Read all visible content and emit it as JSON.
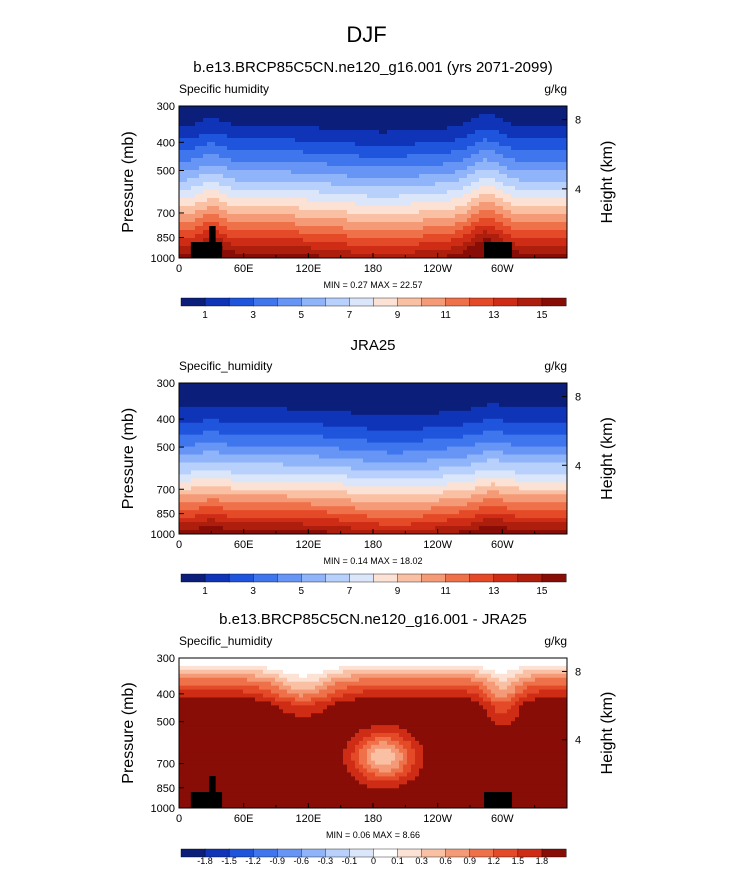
{
  "figure_title": "DJF",
  "chart_data": [
    {
      "type": "heatmap",
      "title": "b.e13.BRCP85C5CN.ne120_g16.001 (yrs 2071-2099)",
      "variable_label": "Specific humidity",
      "units": "g/kg",
      "ylabel": "Pressure (mb)",
      "ylabel_right": "Height (km)",
      "x_ticks": [
        "0",
        "60E",
        "120E",
        "180",
        "120W",
        "60W"
      ],
      "y_ticks": [
        "300",
        "400",
        "500",
        "700",
        "850",
        "1000"
      ],
      "y_right_ticks": [
        "8",
        "4"
      ],
      "stats": "MIN =   0.27   MAX =  22.57",
      "colorbar_labels": [
        "1",
        "3",
        "5",
        "7",
        "9",
        "11",
        "13",
        "15"
      ],
      "colors": [
        "#0a1e7a",
        "#0f34b8",
        "#1f55dc",
        "#3f76ee",
        "#6695f5",
        "#8fb4fa",
        "#b7d0fc",
        "#dbe6fb",
        "#fbe2d4",
        "#f9c0a4",
        "#f59a76",
        "#ee714a",
        "#e44a27",
        "#cf2c16",
        "#ad1e0d",
        "#890d07"
      ]
    },
    {
      "type": "heatmap",
      "title": "JRA25",
      "variable_label": "Specific_humidity",
      "units": "g/kg",
      "ylabel": "Pressure (mb)",
      "ylabel_right": "Height (km)",
      "x_ticks": [
        "0",
        "60E",
        "120E",
        "180",
        "120W",
        "60W"
      ],
      "y_ticks": [
        "300",
        "400",
        "500",
        "700",
        "850",
        "1000"
      ],
      "y_right_ticks": [
        "8",
        "4"
      ],
      "stats": "MIN =   0.14   MAX =  18.02",
      "colorbar_labels": [
        "1",
        "3",
        "5",
        "7",
        "9",
        "11",
        "13",
        "15"
      ],
      "colors": [
        "#0a1e7a",
        "#0f34b8",
        "#1f55dc",
        "#3f76ee",
        "#6695f5",
        "#8fb4fa",
        "#b7d0fc",
        "#dbe6fb",
        "#fbe2d4",
        "#f9c0a4",
        "#f59a76",
        "#ee714a",
        "#e44a27",
        "#cf2c16",
        "#ad1e0d",
        "#890d07"
      ]
    },
    {
      "type": "heatmap",
      "title": "b.e13.BRCP85C5CN.ne120_g16.001 - JRA25",
      "variable_label": "Specific_humidity",
      "units": "g/kg",
      "ylabel": "Pressure (mb)",
      "ylabel_right": "Height (km)",
      "x_ticks": [
        "0",
        "60E",
        "120E",
        "180",
        "120W",
        "60W"
      ],
      "y_ticks": [
        "300",
        "400",
        "500",
        "700",
        "850",
        "1000"
      ],
      "y_right_ticks": [
        "8",
        "4"
      ],
      "stats": "MIN =   0.06   MAX =   8.66",
      "colorbar_labels": [
        "-1.8",
        "-1.5",
        "-1.2",
        "-0.9",
        "-0.6",
        "-0.3",
        "-0.1",
        "0",
        "0.1",
        "0.3",
        "0.6",
        "0.9",
        "1.2",
        "1.5",
        "1.8"
      ],
      "colors": [
        "#0a1e7a",
        "#0f34b8",
        "#1f55dc",
        "#3f76ee",
        "#6695f5",
        "#8fb4fa",
        "#b7d0fc",
        "#dbe6fb",
        "#ffffff",
        "#fbe2d4",
        "#f9c0a4",
        "#f59a76",
        "#ee714a",
        "#e44a27",
        "#cf2c16",
        "#890d07"
      ]
    }
  ]
}
